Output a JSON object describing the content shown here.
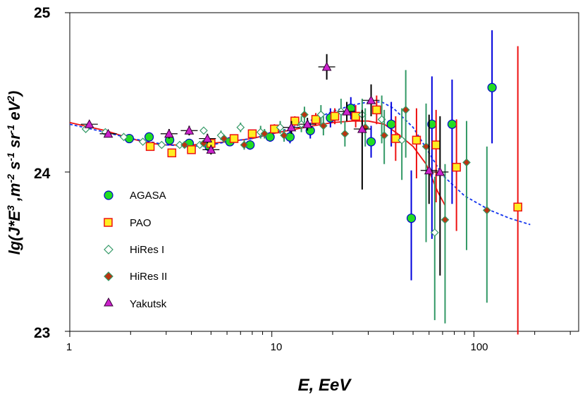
{
  "chart_data": {
    "type": "scatter",
    "title": "",
    "xlabel": "E, EeV",
    "ylabel": "lg(J*E³, m⁻² s⁻¹ sr⁻¹ eV²)",
    "xscale": "log",
    "xlim": [
      1,
      330
    ],
    "ylim": [
      23,
      25
    ],
    "x_ticks": [
      1,
      10,
      100
    ],
    "x_tick_labels": [
      "1",
      "10",
      "100"
    ],
    "y_ticks": [
      23,
      24,
      25
    ],
    "y_tick_labels": [
      "23",
      "24",
      "25"
    ],
    "grid": false,
    "legend_position": "left",
    "series": [
      {
        "name": "AGASA",
        "marker": "circle",
        "fill": "#22dd22",
        "stroke": "#0000cc",
        "errcolor": "#0000dd",
        "points": [
          {
            "x": 1.97,
            "y": 24.21,
            "err": [
              0.01,
              0.01
            ]
          },
          {
            "x": 2.47,
            "y": 24.22,
            "err": [
              0.01,
              0.01
            ]
          },
          {
            "x": 3.12,
            "y": 24.2,
            "err": [
              0.02,
              0.02
            ]
          },
          {
            "x": 3.9,
            "y": 24.18,
            "err": [
              0.02,
              0.02
            ]
          },
          {
            "x": 4.9,
            "y": 24.16,
            "err": [
              0.02,
              0.02
            ]
          },
          {
            "x": 6.2,
            "y": 24.19,
            "err": [
              0.02,
              0.02
            ]
          },
          {
            "x": 7.8,
            "y": 24.17,
            "err": [
              0.03,
              0.03
            ]
          },
          {
            "x": 9.8,
            "y": 24.22,
            "err": [
              0.03,
              0.03
            ]
          },
          {
            "x": 12.3,
            "y": 24.22,
            "err": [
              0.04,
              0.04
            ]
          },
          {
            "x": 15.5,
            "y": 24.26,
            "err": [
              0.05,
              0.05
            ]
          },
          {
            "x": 19.5,
            "y": 24.34,
            "err": [
              0.06,
              0.06
            ]
          },
          {
            "x": 24.6,
            "y": 24.4,
            "err": [
              0.07,
              0.07
            ]
          },
          {
            "x": 31,
            "y": 24.19,
            "err": [
              0.1,
              0.1
            ]
          },
          {
            "x": 39,
            "y": 24.3,
            "err": [
              0.14,
              0.14
            ]
          },
          {
            "x": 49,
            "y": 23.71,
            "err": [
              0.39,
              0.3
            ]
          },
          {
            "x": 62,
            "y": 24.3,
            "err": [
              0.72,
              0.3
            ]
          },
          {
            "x": 78,
            "y": 24.3,
            "err": [
              0.5,
              0.28
            ]
          },
          {
            "x": 123,
            "y": 24.53,
            "err": [
              0.35,
              0.36
            ]
          }
        ]
      },
      {
        "name": "PAO",
        "marker": "square",
        "fill": "#ffee22",
        "stroke": "#ee1111",
        "errcolor": "#ee1111",
        "points": [
          {
            "x": 2.5,
            "y": 24.16,
            "err": [
              0.01,
              0.01
            ]
          },
          {
            "x": 3.2,
            "y": 24.12,
            "err": [
              0.01,
              0.01
            ]
          },
          {
            "x": 4.0,
            "y": 24.14,
            "err": [
              0.01,
              0.01
            ]
          },
          {
            "x": 5.0,
            "y": 24.18,
            "err": [
              0.01,
              0.01
            ]
          },
          {
            "x": 6.5,
            "y": 24.21,
            "err": [
              0.02,
              0.02
            ]
          },
          {
            "x": 8.0,
            "y": 24.24,
            "err": [
              0.02,
              0.02
            ]
          },
          {
            "x": 10.3,
            "y": 24.27,
            "err": [
              0.03,
              0.03
            ]
          },
          {
            "x": 13,
            "y": 24.32,
            "err": [
              0.03,
              0.03
            ]
          },
          {
            "x": 16.5,
            "y": 24.33,
            "err": [
              0.04,
              0.04
            ]
          },
          {
            "x": 20.5,
            "y": 24.35,
            "err": [
              0.05,
              0.05
            ]
          },
          {
            "x": 26,
            "y": 24.35,
            "err": [
              0.07,
              0.07
            ]
          },
          {
            "x": 33,
            "y": 24.39,
            "err": [
              0.09,
              0.09
            ]
          },
          {
            "x": 41,
            "y": 24.21,
            "err": [
              0.14,
              0.14
            ]
          },
          {
            "x": 52,
            "y": 24.2,
            "err": [
              0.24,
              0.2
            ]
          },
          {
            "x": 65,
            "y": 24.17,
            "err": [
              0.36,
              0.22
            ]
          },
          {
            "x": 82,
            "y": 24.03,
            "err": [
              0.4,
              0.3
            ]
          },
          {
            "x": 165,
            "y": 23.78,
            "err": [
              0.8,
              1.01
            ]
          }
        ]
      },
      {
        "name": "HiRes I",
        "marker": "diamond-open",
        "fill": "#ffffff",
        "stroke": "#339966",
        "errcolor": "#339966",
        "points": [
          {
            "x": 1.2,
            "y": 24.27,
            "err": [
              0.01,
              0.01
            ]
          },
          {
            "x": 1.5,
            "y": 24.25,
            "err": [
              0.01,
              0.01
            ]
          },
          {
            "x": 1.85,
            "y": 24.22,
            "err": [
              0.01,
              0.01
            ]
          },
          {
            "x": 2.3,
            "y": 24.19,
            "err": [
              0.01,
              0.01
            ]
          },
          {
            "x": 2.85,
            "y": 24.17,
            "err": [
              0.02,
              0.02
            ]
          },
          {
            "x": 3.5,
            "y": 24.17,
            "err": [
              0.02,
              0.02
            ]
          },
          {
            "x": 4.4,
            "y": 24.17,
            "err": [
              0.02,
              0.02
            ]
          },
          {
            "x": 4.6,
            "y": 24.26,
            "err": [
              0.02,
              0.02
            ]
          },
          {
            "x": 5.6,
            "y": 24.23,
            "err": [
              0.03,
              0.03
            ]
          },
          {
            "x": 7.0,
            "y": 24.28,
            "err": [
              0.03,
              0.03
            ]
          },
          {
            "x": 8.8,
            "y": 24.25,
            "err": [
              0.04,
              0.04
            ]
          },
          {
            "x": 11,
            "y": 24.28,
            "err": [
              0.04,
              0.04
            ]
          },
          {
            "x": 14,
            "y": 24.3,
            "err": [
              0.05,
              0.05
            ]
          },
          {
            "x": 17.5,
            "y": 24.36,
            "err": [
              0.06,
              0.06
            ]
          },
          {
            "x": 22,
            "y": 24.38,
            "err": [
              0.08,
              0.08
            ]
          },
          {
            "x": 28,
            "y": 24.36,
            "err": [
              0.1,
              0.1
            ]
          },
          {
            "x": 35,
            "y": 24.33,
            "err": [
              0.15,
              0.15
            ]
          },
          {
            "x": 44,
            "y": 24.2,
            "err": [
              0.25,
              0.2
            ]
          },
          {
            "x": 64,
            "y": 23.62,
            "err": [
              0.55,
              0.35
            ]
          }
        ]
      },
      {
        "name": "HiRes II",
        "marker": "diamond",
        "fill": "#bb3311",
        "stroke": "#339966",
        "errcolor": "#339966",
        "points": [
          {
            "x": 3.7,
            "y": 24.17,
            "err": [
              0.02,
              0.02
            ]
          },
          {
            "x": 4.6,
            "y": 24.18,
            "err": [
              0.02,
              0.02
            ]
          },
          {
            "x": 5.8,
            "y": 24.21,
            "err": [
              0.02,
              0.02
            ]
          },
          {
            "x": 7.3,
            "y": 24.17,
            "err": [
              0.03,
              0.03
            ]
          },
          {
            "x": 9.2,
            "y": 24.24,
            "err": [
              0.03,
              0.03
            ]
          },
          {
            "x": 11.5,
            "y": 24.23,
            "err": [
              0.04,
              0.04
            ]
          },
          {
            "x": 14.5,
            "y": 24.36,
            "err": [
              0.05,
              0.05
            ]
          },
          {
            "x": 18,
            "y": 24.29,
            "err": [
              0.06,
              0.06
            ]
          },
          {
            "x": 23,
            "y": 24.24,
            "err": [
              0.08,
              0.08
            ]
          },
          {
            "x": 29,
            "y": 24.28,
            "err": [
              0.12,
              0.12
            ]
          },
          {
            "x": 36,
            "y": 24.23,
            "err": [
              0.18,
              0.16
            ]
          },
          {
            "x": 46,
            "y": 24.39,
            "err": [
              0.3,
              0.25
            ]
          },
          {
            "x": 58,
            "y": 24.16,
            "err": [
              0.6,
              0.27
            ]
          },
          {
            "x": 72,
            "y": 23.7,
            "err": [
              0.65,
              0.35
            ]
          },
          {
            "x": 92,
            "y": 24.06,
            "err": [
              0.55,
              0.26
            ]
          },
          {
            "x": 116,
            "y": 23.76,
            "err": [
              0.58,
              0.4
            ]
          }
        ]
      },
      {
        "name": "Yakutsk",
        "marker": "triangle",
        "fill": "#cc22cc",
        "stroke": "#330033",
        "errcolor": "#000000",
        "points": [
          {
            "x": 1.25,
            "y": 24.3,
            "err": [
              0.02,
              0.02
            ]
          },
          {
            "x": 1.55,
            "y": 24.24,
            "err": [
              0.02,
              0.02
            ]
          },
          {
            "x": 3.1,
            "y": 24.24,
            "err": [
              0.03,
              0.03
            ]
          },
          {
            "x": 3.9,
            "y": 24.26,
            "err": [
              0.03,
              0.03
            ]
          },
          {
            "x": 4.8,
            "y": 24.21,
            "err": [
              0.03,
              0.03
            ]
          },
          {
            "x": 5.0,
            "y": 24.14,
            "err": [
              0.03,
              0.03
            ]
          },
          {
            "x": 12.5,
            "y": 24.28,
            "err": [
              0.04,
              0.04
            ]
          },
          {
            "x": 15.0,
            "y": 24.3,
            "err": [
              0.04,
              0.04
            ]
          },
          {
            "x": 18.7,
            "y": 24.66,
            "err": [
              0.08,
              0.08
            ]
          },
          {
            "x": 23.5,
            "y": 24.38,
            "err": [
              0.06,
              0.06
            ]
          },
          {
            "x": 28,
            "y": 24.27,
            "err": [
              0.38,
              0.12
            ]
          },
          {
            "x": 31,
            "y": 24.45,
            "err": [
              0.1,
              0.1
            ]
          },
          {
            "x": 60,
            "y": 24.01,
            "err": [
              0.21,
              0.35
            ]
          },
          {
            "x": 68,
            "y": 24.0,
            "err": [
              0.65,
              0.35
            ]
          }
        ]
      }
    ],
    "fit_curves": [
      {
        "name": "red fit",
        "color": "#ee1111",
        "dash": false,
        "points": [
          [
            1,
            24.31
          ],
          [
            1.5,
            24.26
          ],
          [
            2,
            24.21
          ],
          [
            2.5,
            24.18
          ],
          [
            3,
            24.17
          ],
          [
            4,
            24.17
          ],
          [
            5,
            24.18
          ],
          [
            6,
            24.19
          ],
          [
            8,
            24.21
          ],
          [
            10,
            24.24
          ],
          [
            12,
            24.26
          ],
          [
            16,
            24.29
          ],
          [
            20,
            24.31
          ],
          [
            25,
            24.32
          ],
          [
            30,
            24.32
          ],
          [
            36,
            24.3
          ],
          [
            42,
            24.24
          ],
          [
            50,
            24.16
          ],
          [
            58,
            24.05
          ],
          [
            66,
            23.88
          ],
          [
            72,
            23.79
          ]
        ]
      },
      {
        "name": "blue fit",
        "color": "#1133ee",
        "dash": true,
        "points": [
          [
            1,
            24.3
          ],
          [
            1.5,
            24.25
          ],
          [
            2,
            24.21
          ],
          [
            2.5,
            24.19
          ],
          [
            3,
            24.17
          ],
          [
            4,
            24.16
          ],
          [
            5,
            24.17
          ],
          [
            6,
            24.19
          ],
          [
            8,
            24.21
          ],
          [
            10,
            24.24
          ],
          [
            12,
            24.27
          ],
          [
            16,
            24.33
          ],
          [
            20,
            24.38
          ],
          [
            25,
            24.42
          ],
          [
            30,
            24.44
          ],
          [
            35,
            24.44
          ],
          [
            40,
            24.4
          ],
          [
            50,
            24.28
          ],
          [
            60,
            24.12
          ],
          [
            70,
            23.98
          ],
          [
            90,
            23.85
          ],
          [
            120,
            23.76
          ],
          [
            150,
            23.71
          ],
          [
            190,
            23.67
          ]
        ]
      }
    ]
  }
}
